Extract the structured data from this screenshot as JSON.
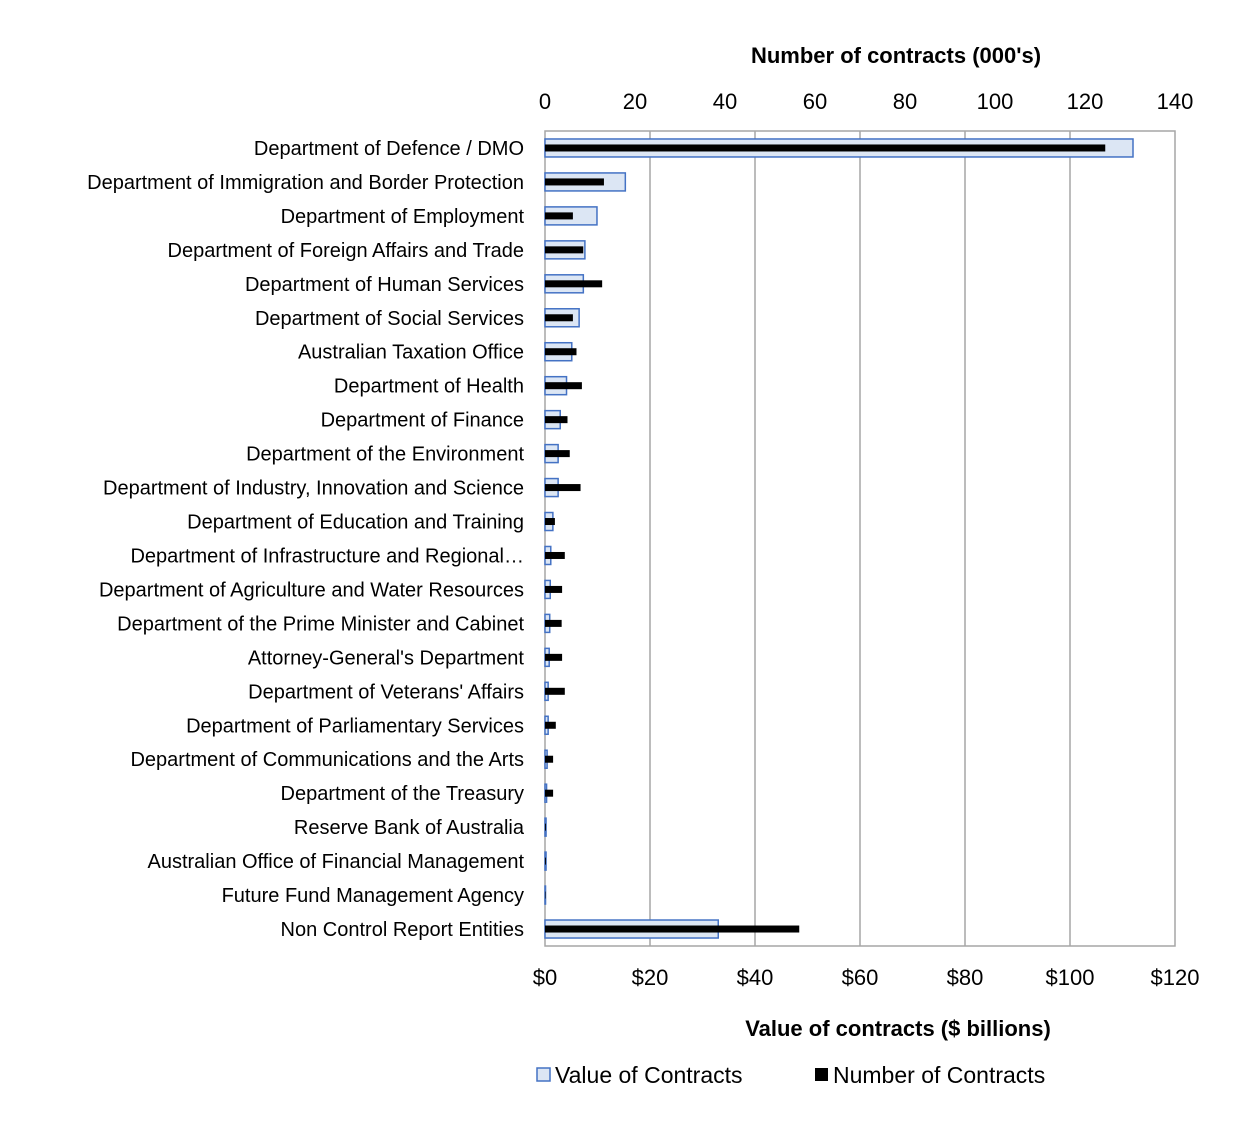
{
  "chart_data": {
    "type": "bar",
    "orientation": "horizontal",
    "categories": [
      "Department of Defence / DMO",
      "Department of Immigration and Border Protection",
      "Department of Employment",
      "Department of Foreign Affairs and Trade",
      "Department of Human Services",
      "Department of Social Services",
      "Australian Taxation Office",
      "Department of Health",
      "Department of Finance",
      "Department of the Environment",
      "Department of Industry, Innovation and Science",
      "Department of Education and Training",
      "Department of Infrastructure and Regional…",
      "Department of Agriculture and Water Resources",
      "Department of the Prime Minister and Cabinet",
      "Attorney-General's Department",
      "Department of Veterans' Affairs",
      "Department of Parliamentary Services",
      "Department of Communications and the Arts",
      "Department of the Treasury",
      "Reserve Bank of Australia",
      "Australian Office of Financial Management",
      "Future Fund Management Agency",
      "Non Control Report Entities"
    ],
    "series": [
      {
        "name": "Value of Contracts",
        "axis": "bottom",
        "color": "#dce6f4",
        "stroke": "#4472c4",
        "values": [
          112.0,
          15.3,
          9.9,
          7.6,
          7.3,
          6.5,
          5.1,
          4.1,
          2.9,
          2.5,
          2.5,
          1.5,
          1.1,
          1.0,
          0.9,
          0.8,
          0.6,
          0.6,
          0.4,
          0.3,
          0.2,
          0.2,
          0.1,
          33.0
        ]
      },
      {
        "name": "Number of Contracts",
        "axis": "top",
        "color": "#000000",
        "values": [
          124.5,
          13.1,
          6.2,
          8.5,
          12.7,
          6.2,
          7.0,
          8.2,
          5.0,
          5.5,
          7.9,
          2.2,
          4.4,
          3.8,
          3.7,
          3.8,
          4.4,
          2.4,
          1.8,
          1.8,
          0.2,
          0.2,
          0.1,
          56.5
        ]
      }
    ],
    "x_bottom": {
      "label": "Value of contracts ($ billions)",
      "min": 0,
      "max": 120,
      "step": 20,
      "tick_labels": [
        "$0",
        "$20",
        "$40",
        "$60",
        "$80",
        "$100",
        "$120"
      ]
    },
    "x_top": {
      "label": "Number of contracts (000's)",
      "min": 0,
      "max": 140,
      "step": 20,
      "tick_labels": [
        "0",
        "20",
        "40",
        "60",
        "80",
        "100",
        "120",
        "140"
      ]
    },
    "grid": true,
    "legend": {
      "placement": "bottom",
      "items": [
        "Value of Contracts",
        "Number of Contracts"
      ]
    }
  }
}
